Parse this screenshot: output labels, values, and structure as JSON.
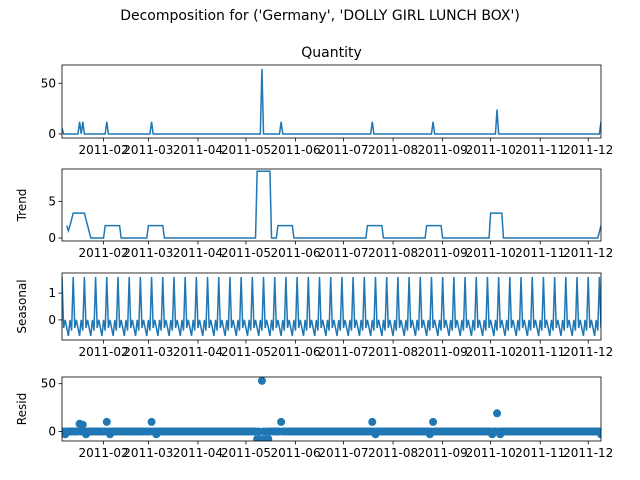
{
  "figure_title": "Decomposition for ('Germany', 'DOLLY GIRL LUNCH BOX')",
  "colors": {
    "line": "#1f77b4",
    "axis": "#000000",
    "background": "#ffffff"
  },
  "x_tick_labels": [
    "2011-02",
    "2011-03",
    "2011-04",
    "2011-05",
    "2011-06",
    "2011-07",
    "2011-08",
    "2011-09",
    "2011-10",
    "2011-11",
    "2011-12"
  ],
  "chart_data": [
    {
      "type": "line",
      "title": "Quantity",
      "ylabel": "",
      "ylim": [
        -4,
        68
      ],
      "yticks": [
        0,
        50
      ],
      "xlim": [
        "2011-01-06",
        "2011-12-09"
      ],
      "series": [
        {
          "values": [
            [
              "2011-01-06",
              6
            ],
            [
              "2011-01-07",
              0
            ],
            [
              "2011-01-16",
              0
            ],
            [
              "2011-01-17",
              12
            ],
            [
              "2011-01-18",
              0
            ],
            [
              "2011-01-19",
              12
            ],
            [
              "2011-01-20",
              0
            ],
            [
              "2011-02-02",
              0
            ],
            [
              "2011-02-03",
              12
            ],
            [
              "2011-02-04",
              0
            ],
            [
              "2011-03-02",
              0
            ],
            [
              "2011-03-03",
              12
            ],
            [
              "2011-03-04",
              0
            ],
            [
              "2011-05-10",
              0
            ],
            [
              "2011-05-11",
              64
            ],
            [
              "2011-05-12",
              0
            ],
            [
              "2011-05-22",
              0
            ],
            [
              "2011-05-23",
              12
            ],
            [
              "2011-05-24",
              0
            ],
            [
              "2011-07-18",
              0
            ],
            [
              "2011-07-19",
              12
            ],
            [
              "2011-07-20",
              0
            ],
            [
              "2011-08-25",
              0
            ],
            [
              "2011-08-26",
              12
            ],
            [
              "2011-08-27",
              0
            ],
            [
              "2011-10-04",
              0
            ],
            [
              "2011-10-05",
              24
            ],
            [
              "2011-10-06",
              0
            ],
            [
              "2011-12-08",
              0
            ],
            [
              "2011-12-09",
              12
            ]
          ]
        }
      ]
    },
    {
      "type": "line",
      "title": "",
      "ylabel": "Trend",
      "ylim": [
        -0.4,
        9.4
      ],
      "yticks": [
        0,
        5
      ],
      "xlim": [
        "2011-01-06",
        "2011-12-09"
      ],
      "series": [
        {
          "values": [
            [
              "2011-01-09",
              1.7
            ],
            [
              "2011-01-10",
              1.0
            ],
            [
              "2011-01-11",
              1.7
            ],
            [
              "2011-01-13",
              3.4
            ],
            [
              "2011-01-20",
              3.4
            ],
            [
              "2011-01-22",
              1.7
            ],
            [
              "2011-01-24",
              0
            ],
            [
              "2011-02-01",
              0
            ],
            [
              "2011-02-02",
              1.7
            ],
            [
              "2011-02-11",
              1.7
            ],
            [
              "2011-02-12",
              0
            ],
            [
              "2011-02-28",
              0
            ],
            [
              "2011-03-01",
              1.7
            ],
            [
              "2011-03-10",
              1.7
            ],
            [
              "2011-03-11",
              0
            ],
            [
              "2011-05-07",
              0
            ],
            [
              "2011-05-08",
              9.1
            ],
            [
              "2011-05-16",
              9.1
            ],
            [
              "2011-05-17",
              0
            ],
            [
              "2011-05-20",
              0
            ],
            [
              "2011-05-21",
              1.7
            ],
            [
              "2011-05-30",
              1.7
            ],
            [
              "2011-05-31",
              0
            ],
            [
              "2011-07-15",
              0
            ],
            [
              "2011-07-16",
              1.7
            ],
            [
              "2011-07-25",
              1.7
            ],
            [
              "2011-07-26",
              0
            ],
            [
              "2011-08-21",
              0
            ],
            [
              "2011-08-22",
              1.7
            ],
            [
              "2011-08-31",
              1.7
            ],
            [
              "2011-09-01",
              0
            ],
            [
              "2011-09-30",
              0
            ],
            [
              "2011-10-01",
              3.4
            ],
            [
              "2011-10-08",
              3.4
            ],
            [
              "2011-10-09",
              0
            ],
            [
              "2011-12-07",
              0
            ],
            [
              "2011-12-09",
              1.7
            ]
          ]
        }
      ]
    },
    {
      "type": "line",
      "title": "",
      "ylabel": "Seasonal",
      "ylim": [
        -0.75,
        1.75
      ],
      "yticks": [
        0,
        1
      ],
      "xlim": [
        "2011-01-06",
        "2011-12-09"
      ],
      "period_days": 7,
      "series": [
        {
          "pattern": [
            1.6,
            -0.3,
            0.0,
            -0.3,
            -0.6,
            0.0,
            -0.4
          ]
        }
      ]
    },
    {
      "type": "scatter",
      "title": "",
      "ylabel": "Resid",
      "ylim": [
        -10,
        57
      ],
      "yticks": [
        0,
        50
      ],
      "xlim": [
        "2011-01-06",
        "2011-12-09"
      ],
      "series": [
        {
          "baseline": 0,
          "values": [
            [
              "2011-01-06",
              -2
            ],
            [
              "2011-01-08",
              -3
            ],
            [
              "2011-01-17",
              8
            ],
            [
              "2011-01-19",
              7
            ],
            [
              "2011-01-21",
              -3
            ],
            [
              "2011-02-03",
              10
            ],
            [
              "2011-02-05",
              -3
            ],
            [
              "2011-03-03",
              10
            ],
            [
              "2011-03-06",
              -3
            ],
            [
              "2011-05-08",
              -8
            ],
            [
              "2011-05-10",
              -8
            ],
            [
              "2011-05-11",
              53
            ],
            [
              "2011-05-13",
              -8
            ],
            [
              "2011-05-15",
              -8
            ],
            [
              "2011-05-23",
              10
            ],
            [
              "2011-07-19",
              10
            ],
            [
              "2011-07-21",
              -3
            ],
            [
              "2011-08-26",
              10
            ],
            [
              "2011-08-24",
              -3
            ],
            [
              "2011-10-02",
              -3
            ],
            [
              "2011-10-05",
              19
            ],
            [
              "2011-10-07",
              -3
            ],
            [
              "2011-12-09",
              -3
            ]
          ]
        }
      ]
    }
  ]
}
